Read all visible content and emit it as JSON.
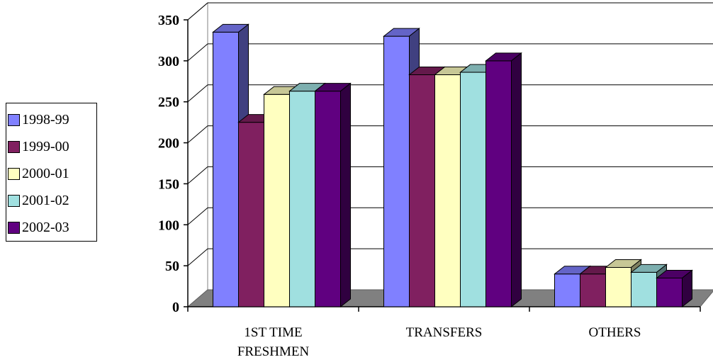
{
  "chart_data": {
    "type": "bar",
    "title": "",
    "xlabel": "",
    "ylabel": "",
    "categories": [
      "1ST TIME FRESHMEN",
      "TRANSFERS",
      "OTHERS"
    ],
    "category_lines": [
      [
        "1ST TIME",
        "FRESHMEN"
      ],
      [
        "TRANSFERS"
      ],
      [
        "OTHERS"
      ]
    ],
    "series": [
      {
        "name": "1998-99",
        "values": [
          335,
          330,
          40
        ],
        "color": "#8080ff"
      },
      {
        "name": "1999-00",
        "values": [
          225,
          283,
          40
        ],
        "color": "#802060"
      },
      {
        "name": "2000-01",
        "values": [
          259,
          283,
          48
        ],
        "color": "#ffffc0"
      },
      {
        "name": "2001-02",
        "values": [
          263,
          286,
          42
        ],
        "color": "#a0e0e0"
      },
      {
        "name": "2002-03",
        "values": [
          263,
          300,
          35
        ],
        "color": "#600080"
      }
    ],
    "ylim": [
      0,
      350
    ],
    "yticks": [
      0,
      50,
      100,
      150,
      200,
      250,
      300,
      350
    ],
    "grid": true,
    "legend_position": "left",
    "three_d": true
  }
}
